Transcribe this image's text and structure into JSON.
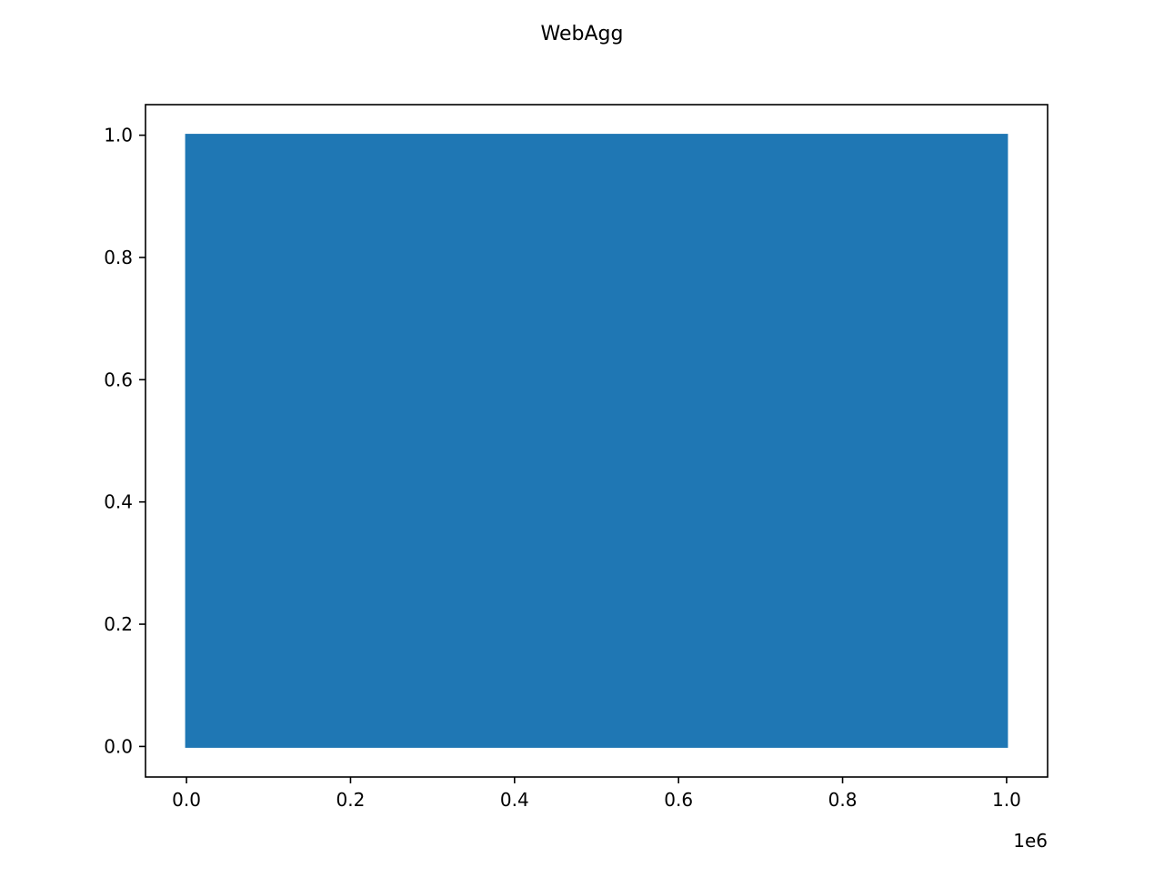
{
  "chart_data": {
    "type": "line",
    "title": "WebAgg",
    "xlabel": "",
    "ylabel": "",
    "x_offset_label": "1e6",
    "xlim": [
      -50000,
      1050000
    ],
    "ylim": [
      -0.05,
      1.05
    ],
    "x_ticks": [
      0,
      200000,
      400000,
      600000,
      800000,
      1000000
    ],
    "x_tick_labels": [
      "0.0",
      "0.2",
      "0.4",
      "0.6",
      "0.8",
      "1.0"
    ],
    "y_ticks": [
      0.0,
      0.2,
      0.4,
      0.6,
      0.8,
      1.0
    ],
    "y_tick_labels": [
      "0.0",
      "0.2",
      "0.4",
      "0.6",
      "0.8",
      "1.0"
    ],
    "grid": false,
    "series": [
      {
        "color": "#1f77b4",
        "x_range": [
          0,
          1000000
        ],
        "y_range": [
          0.0,
          1.0
        ],
        "description_of_points": "dense random noise between 0 and 1 over 1,000,000 samples"
      }
    ]
  }
}
